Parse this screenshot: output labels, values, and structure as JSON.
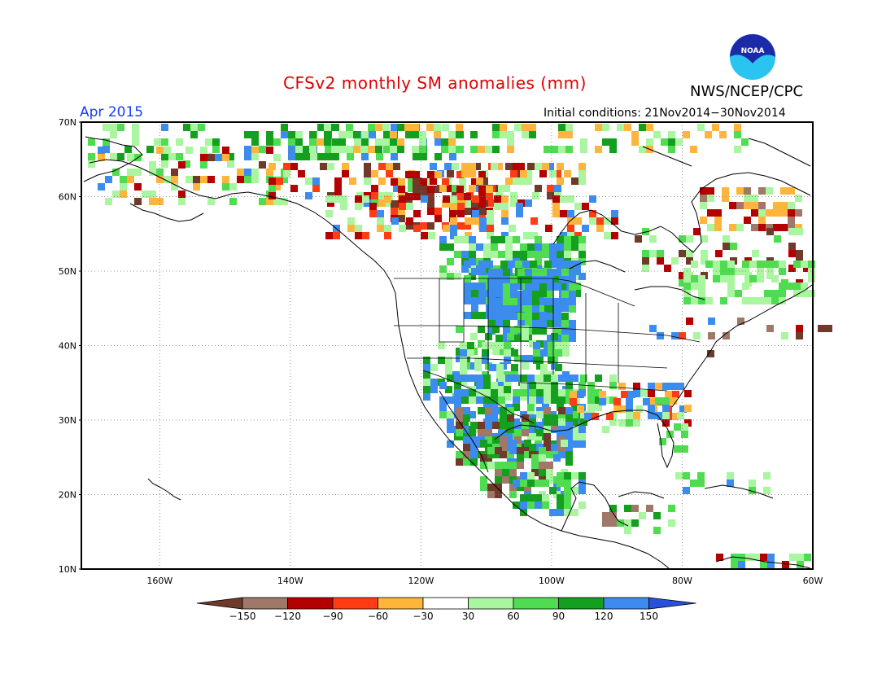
{
  "header": {
    "title": "CFSv2 monthly SM anomalies (mm)",
    "agency": "NWS/NCEP/CPC",
    "period": "Apr 2015",
    "initial_conditions": "Initial conditions: 21Nov2014−30Nov2014",
    "logo_text": "NOAA"
  },
  "map": {
    "lon_range": [
      -172,
      -60
    ],
    "lat_range": [
      10,
      70
    ],
    "lat_labels": [
      "70N",
      "60N",
      "50N",
      "40N",
      "30N",
      "20N",
      "10N"
    ],
    "lon_labels": [
      "160W",
      "140W",
      "120W",
      "100W",
      "80W",
      "60W"
    ]
  },
  "legend": {
    "tick_labels": [
      "−150",
      "−120",
      "−90",
      "−60",
      "−30",
      "30",
      "60",
      "90",
      "120",
      "150"
    ],
    "colors": [
      "#6e3a2a",
      "#a07868",
      "#b40000",
      "#ff3c14",
      "#ffb43c",
      "#ffffff",
      "#aaf5a0",
      "#50dc50",
      "#14a01e",
      "#3c8cf0",
      "#2850dc"
    ]
  }
}
